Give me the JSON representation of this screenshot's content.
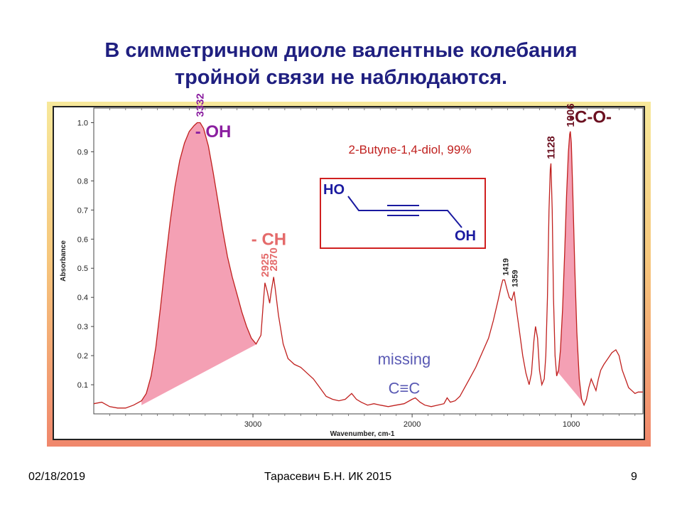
{
  "slide": {
    "title_line1": "В симметричном диоле валентные колебания",
    "title_line2": "тройной связи не наблюдаются."
  },
  "footer": {
    "date": "02/18/2019",
    "author": "Тарасевич Б.Н.  ИК 2015",
    "page": "9"
  },
  "colors": {
    "spectrum_line": "#c0201e",
    "fill_pink": "#f4a0b4",
    "oh_label": "#8b1fa0",
    "ch_label": "#e46a6a",
    "co_label": "#6b1020",
    "missing_label": "#5a5ab4",
    "structure": "#1a1aa0"
  },
  "structure": {
    "ho_label": "HO",
    "oh_label": "OH"
  },
  "chart_data": {
    "type": "line",
    "title": "2-Butyne-1,4-diol, 99%",
    "xlabel": "Wavenumber, cm-1",
    "ylabel": "Absorbance",
    "xlim": [
      4000,
      550
    ],
    "ylim": [
      0,
      1.05
    ],
    "x_reversed": true,
    "x_ticks": [
      3000,
      2000,
      1000
    ],
    "y_ticks": [
      0.1,
      0.2,
      0.3,
      0.4,
      0.5,
      0.6,
      0.7,
      0.8,
      0.9,
      1.0
    ],
    "grid": false,
    "series": [
      {
        "points": [
          [
            4000,
            0.035
          ],
          [
            3950,
            0.04
          ],
          [
            3900,
            0.025
          ],
          [
            3850,
            0.02
          ],
          [
            3800,
            0.02
          ],
          [
            3750,
            0.03
          ],
          [
            3700,
            0.045
          ],
          [
            3670,
            0.07
          ],
          [
            3640,
            0.13
          ],
          [
            3610,
            0.23
          ],
          [
            3580,
            0.37
          ],
          [
            3550,
            0.52
          ],
          [
            3520,
            0.66
          ],
          [
            3490,
            0.78
          ],
          [
            3460,
            0.87
          ],
          [
            3430,
            0.93
          ],
          [
            3400,
            0.97
          ],
          [
            3370,
            0.99
          ],
          [
            3350,
            1.0
          ],
          [
            3332,
            1.0
          ],
          [
            3310,
            0.98
          ],
          [
            3280,
            0.92
          ],
          [
            3250,
            0.83
          ],
          [
            3220,
            0.73
          ],
          [
            3190,
            0.63
          ],
          [
            3160,
            0.54
          ],
          [
            3130,
            0.47
          ],
          [
            3100,
            0.41
          ],
          [
            3070,
            0.35
          ],
          [
            3040,
            0.3
          ],
          [
            3010,
            0.26
          ],
          [
            2980,
            0.24
          ],
          [
            2950,
            0.27
          ],
          [
            2935,
            0.38
          ],
          [
            2925,
            0.45
          ],
          [
            2910,
            0.42
          ],
          [
            2895,
            0.38
          ],
          [
            2885,
            0.42
          ],
          [
            2870,
            0.47
          ],
          [
            2860,
            0.43
          ],
          [
            2840,
            0.34
          ],
          [
            2810,
            0.24
          ],
          [
            2780,
            0.19
          ],
          [
            2740,
            0.17
          ],
          [
            2700,
            0.16
          ],
          [
            2660,
            0.14
          ],
          [
            2620,
            0.12
          ],
          [
            2580,
            0.09
          ],
          [
            2540,
            0.06
          ],
          [
            2500,
            0.05
          ],
          [
            2460,
            0.045
          ],
          [
            2420,
            0.05
          ],
          [
            2380,
            0.07
          ],
          [
            2350,
            0.05
          ],
          [
            2320,
            0.04
          ],
          [
            2280,
            0.03
          ],
          [
            2240,
            0.035
          ],
          [
            2200,
            0.03
          ],
          [
            2150,
            0.025
          ],
          [
            2100,
            0.03
          ],
          [
            2050,
            0.035
          ],
          [
            2000,
            0.05
          ],
          [
            1980,
            0.055
          ],
          [
            1950,
            0.04
          ],
          [
            1920,
            0.03
          ],
          [
            1880,
            0.025
          ],
          [
            1840,
            0.03
          ],
          [
            1800,
            0.035
          ],
          [
            1780,
            0.055
          ],
          [
            1760,
            0.04
          ],
          [
            1730,
            0.045
          ],
          [
            1700,
            0.06
          ],
          [
            1670,
            0.09
          ],
          [
            1640,
            0.12
          ],
          [
            1600,
            0.16
          ],
          [
            1560,
            0.21
          ],
          [
            1520,
            0.26
          ],
          [
            1490,
            0.32
          ],
          [
            1460,
            0.39
          ],
          [
            1440,
            0.44
          ],
          [
            1430,
            0.46
          ],
          [
            1419,
            0.46
          ],
          [
            1405,
            0.43
          ],
          [
            1390,
            0.4
          ],
          [
            1375,
            0.39
          ],
          [
            1359,
            0.42
          ],
          [
            1345,
            0.36
          ],
          [
            1325,
            0.28
          ],
          [
            1305,
            0.2
          ],
          [
            1285,
            0.14
          ],
          [
            1265,
            0.1
          ],
          [
            1250,
            0.14
          ],
          [
            1235,
            0.25
          ],
          [
            1225,
            0.3
          ],
          [
            1212,
            0.26
          ],
          [
            1200,
            0.15
          ],
          [
            1185,
            0.1
          ],
          [
            1170,
            0.12
          ],
          [
            1160,
            0.2
          ],
          [
            1150,
            0.4
          ],
          [
            1140,
            0.7
          ],
          [
            1132,
            0.84
          ],
          [
            1128,
            0.86
          ],
          [
            1120,
            0.7
          ],
          [
            1112,
            0.4
          ],
          [
            1102,
            0.2
          ],
          [
            1092,
            0.13
          ],
          [
            1080,
            0.15
          ],
          [
            1068,
            0.22
          ],
          [
            1055,
            0.36
          ],
          [
            1042,
            0.55
          ],
          [
            1030,
            0.75
          ],
          [
            1018,
            0.9
          ],
          [
            1010,
            0.96
          ],
          [
            1006,
            0.97
          ],
          [
            1000,
            0.93
          ],
          [
            990,
            0.75
          ],
          [
            978,
            0.5
          ],
          [
            965,
            0.28
          ],
          [
            950,
            0.12
          ],
          [
            935,
            0.05
          ],
          [
            920,
            0.03
          ],
          [
            905,
            0.05
          ],
          [
            890,
            0.09
          ],
          [
            875,
            0.12
          ],
          [
            860,
            0.1
          ],
          [
            845,
            0.08
          ],
          [
            830,
            0.12
          ],
          [
            815,
            0.15
          ],
          [
            795,
            0.17
          ],
          [
            770,
            0.19
          ],
          [
            745,
            0.21
          ],
          [
            720,
            0.22
          ],
          [
            700,
            0.2
          ],
          [
            680,
            0.15
          ],
          [
            660,
            0.12
          ],
          [
            640,
            0.09
          ],
          [
            620,
            0.08
          ],
          [
            600,
            0.07
          ],
          [
            580,
            0.075
          ],
          [
            550,
            0.075
          ]
        ]
      }
    ],
    "filled_regions": [
      {
        "label": "- OH",
        "from": 3700,
        "to": 2975,
        "baseline": [
          [
            3700,
            0.03
          ],
          [
            2975,
            0.24
          ]
        ]
      },
      {
        "label": "-C-O-",
        "from": 1095,
        "to": 935,
        "baseline": [
          [
            1095,
            0.15
          ],
          [
            935,
            0.045
          ]
        ]
      }
    ],
    "peak_labels": [
      {
        "text": "3332",
        "x": 3332,
        "y": 1.0,
        "color": "#8b1fa0"
      },
      {
        "text": "2925",
        "x": 2925,
        "y": 0.45,
        "color": "#e46a6a"
      },
      {
        "text": "2870",
        "x": 2870,
        "y": 0.47,
        "color": "#e46a6a"
      },
      {
        "text": "1419",
        "x": 1419,
        "y": 0.46,
        "color": "#222222"
      },
      {
        "text": "1359",
        "x": 1359,
        "y": 0.42,
        "color": "#222222"
      },
      {
        "text": "1128",
        "x": 1128,
        "y": 0.86,
        "color": "#6b1020"
      },
      {
        "text": "1006",
        "x": 1006,
        "y": 0.97,
        "color": "#6b1020"
      }
    ],
    "annotations": [
      {
        "text": "- OH",
        "x": 3250,
        "y": 0.95,
        "color": "#8b1fa0"
      },
      {
        "text": "- CH",
        "x": 2900,
        "y": 0.58,
        "color": "#e46a6a"
      },
      {
        "text": "-C-O-",
        "x": 880,
        "y": 1.0,
        "color": "#6b1020"
      },
      {
        "text": "missing",
        "x": 2050,
        "y": 0.17,
        "color": "#5a5ab4"
      },
      {
        "text": "C≡C",
        "x": 2050,
        "y": 0.07,
        "color": "#5a5ab4"
      }
    ]
  }
}
